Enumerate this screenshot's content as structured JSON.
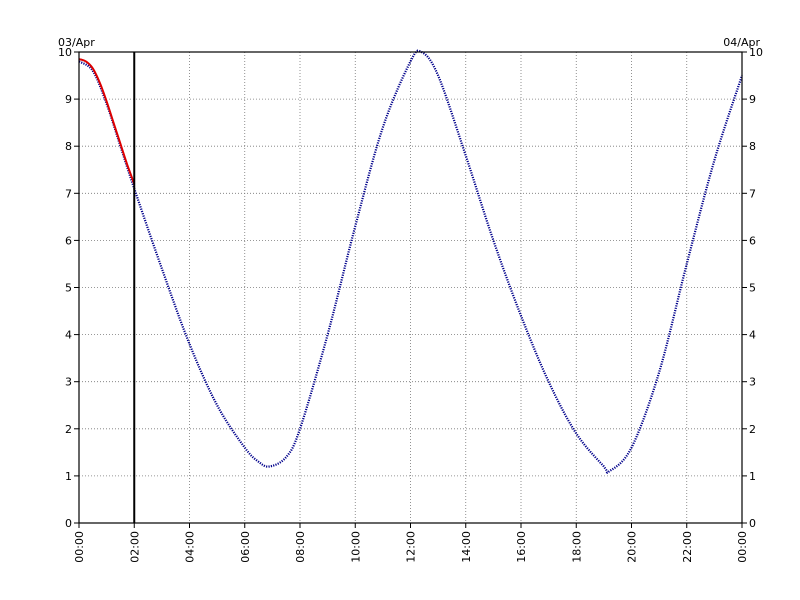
{
  "chart_data": {
    "type": "line",
    "date_left": "03/Apr",
    "date_right": "04/Apr",
    "x_tick_labels": [
      "00:00",
      "02:00",
      "04:00",
      "06:00",
      "08:00",
      "10:00",
      "12:00",
      "14:00",
      "16:00",
      "18:00",
      "20:00",
      "22:00",
      "00:00"
    ],
    "y_tick_labels": [
      "0",
      "1",
      "2",
      "3",
      "4",
      "5",
      "6",
      "7",
      "8",
      "9",
      "10"
    ],
    "xlim_hours": [
      0,
      24
    ],
    "ylim": [
      0,
      10
    ],
    "grid": true,
    "current_time_marker_hours": 2,
    "series": [
      {
        "color": "#00008b",
        "style": "dotted",
        "x_hours": [
          0,
          0.5,
          1,
          1.5,
          2,
          3,
          4,
          5,
          6,
          6.5,
          6.9,
          7.5,
          8,
          9,
          10,
          11,
          12,
          12.4,
          13,
          14,
          15,
          16,
          17,
          18,
          19,
          19.2,
          20,
          21,
          22,
          23,
          24
        ],
        "values": [
          9.8,
          9.6,
          8.9,
          8.0,
          7.1,
          5.4,
          3.8,
          2.5,
          1.6,
          1.3,
          1.2,
          1.4,
          2.0,
          4.0,
          6.3,
          8.4,
          9.8,
          10.0,
          9.5,
          7.8,
          6.0,
          4.4,
          3.0,
          1.9,
          1.2,
          1.1,
          1.6,
          3.2,
          5.5,
          7.7,
          9.5
        ]
      },
      {
        "color": "#dd0000",
        "style": "solid",
        "x_hours": [
          0,
          0.25,
          0.5,
          0.75,
          1,
          1.25,
          1.5,
          1.75,
          2
        ],
        "values": [
          9.85,
          9.8,
          9.65,
          9.35,
          8.95,
          8.5,
          8.05,
          7.6,
          7.2
        ]
      }
    ]
  }
}
